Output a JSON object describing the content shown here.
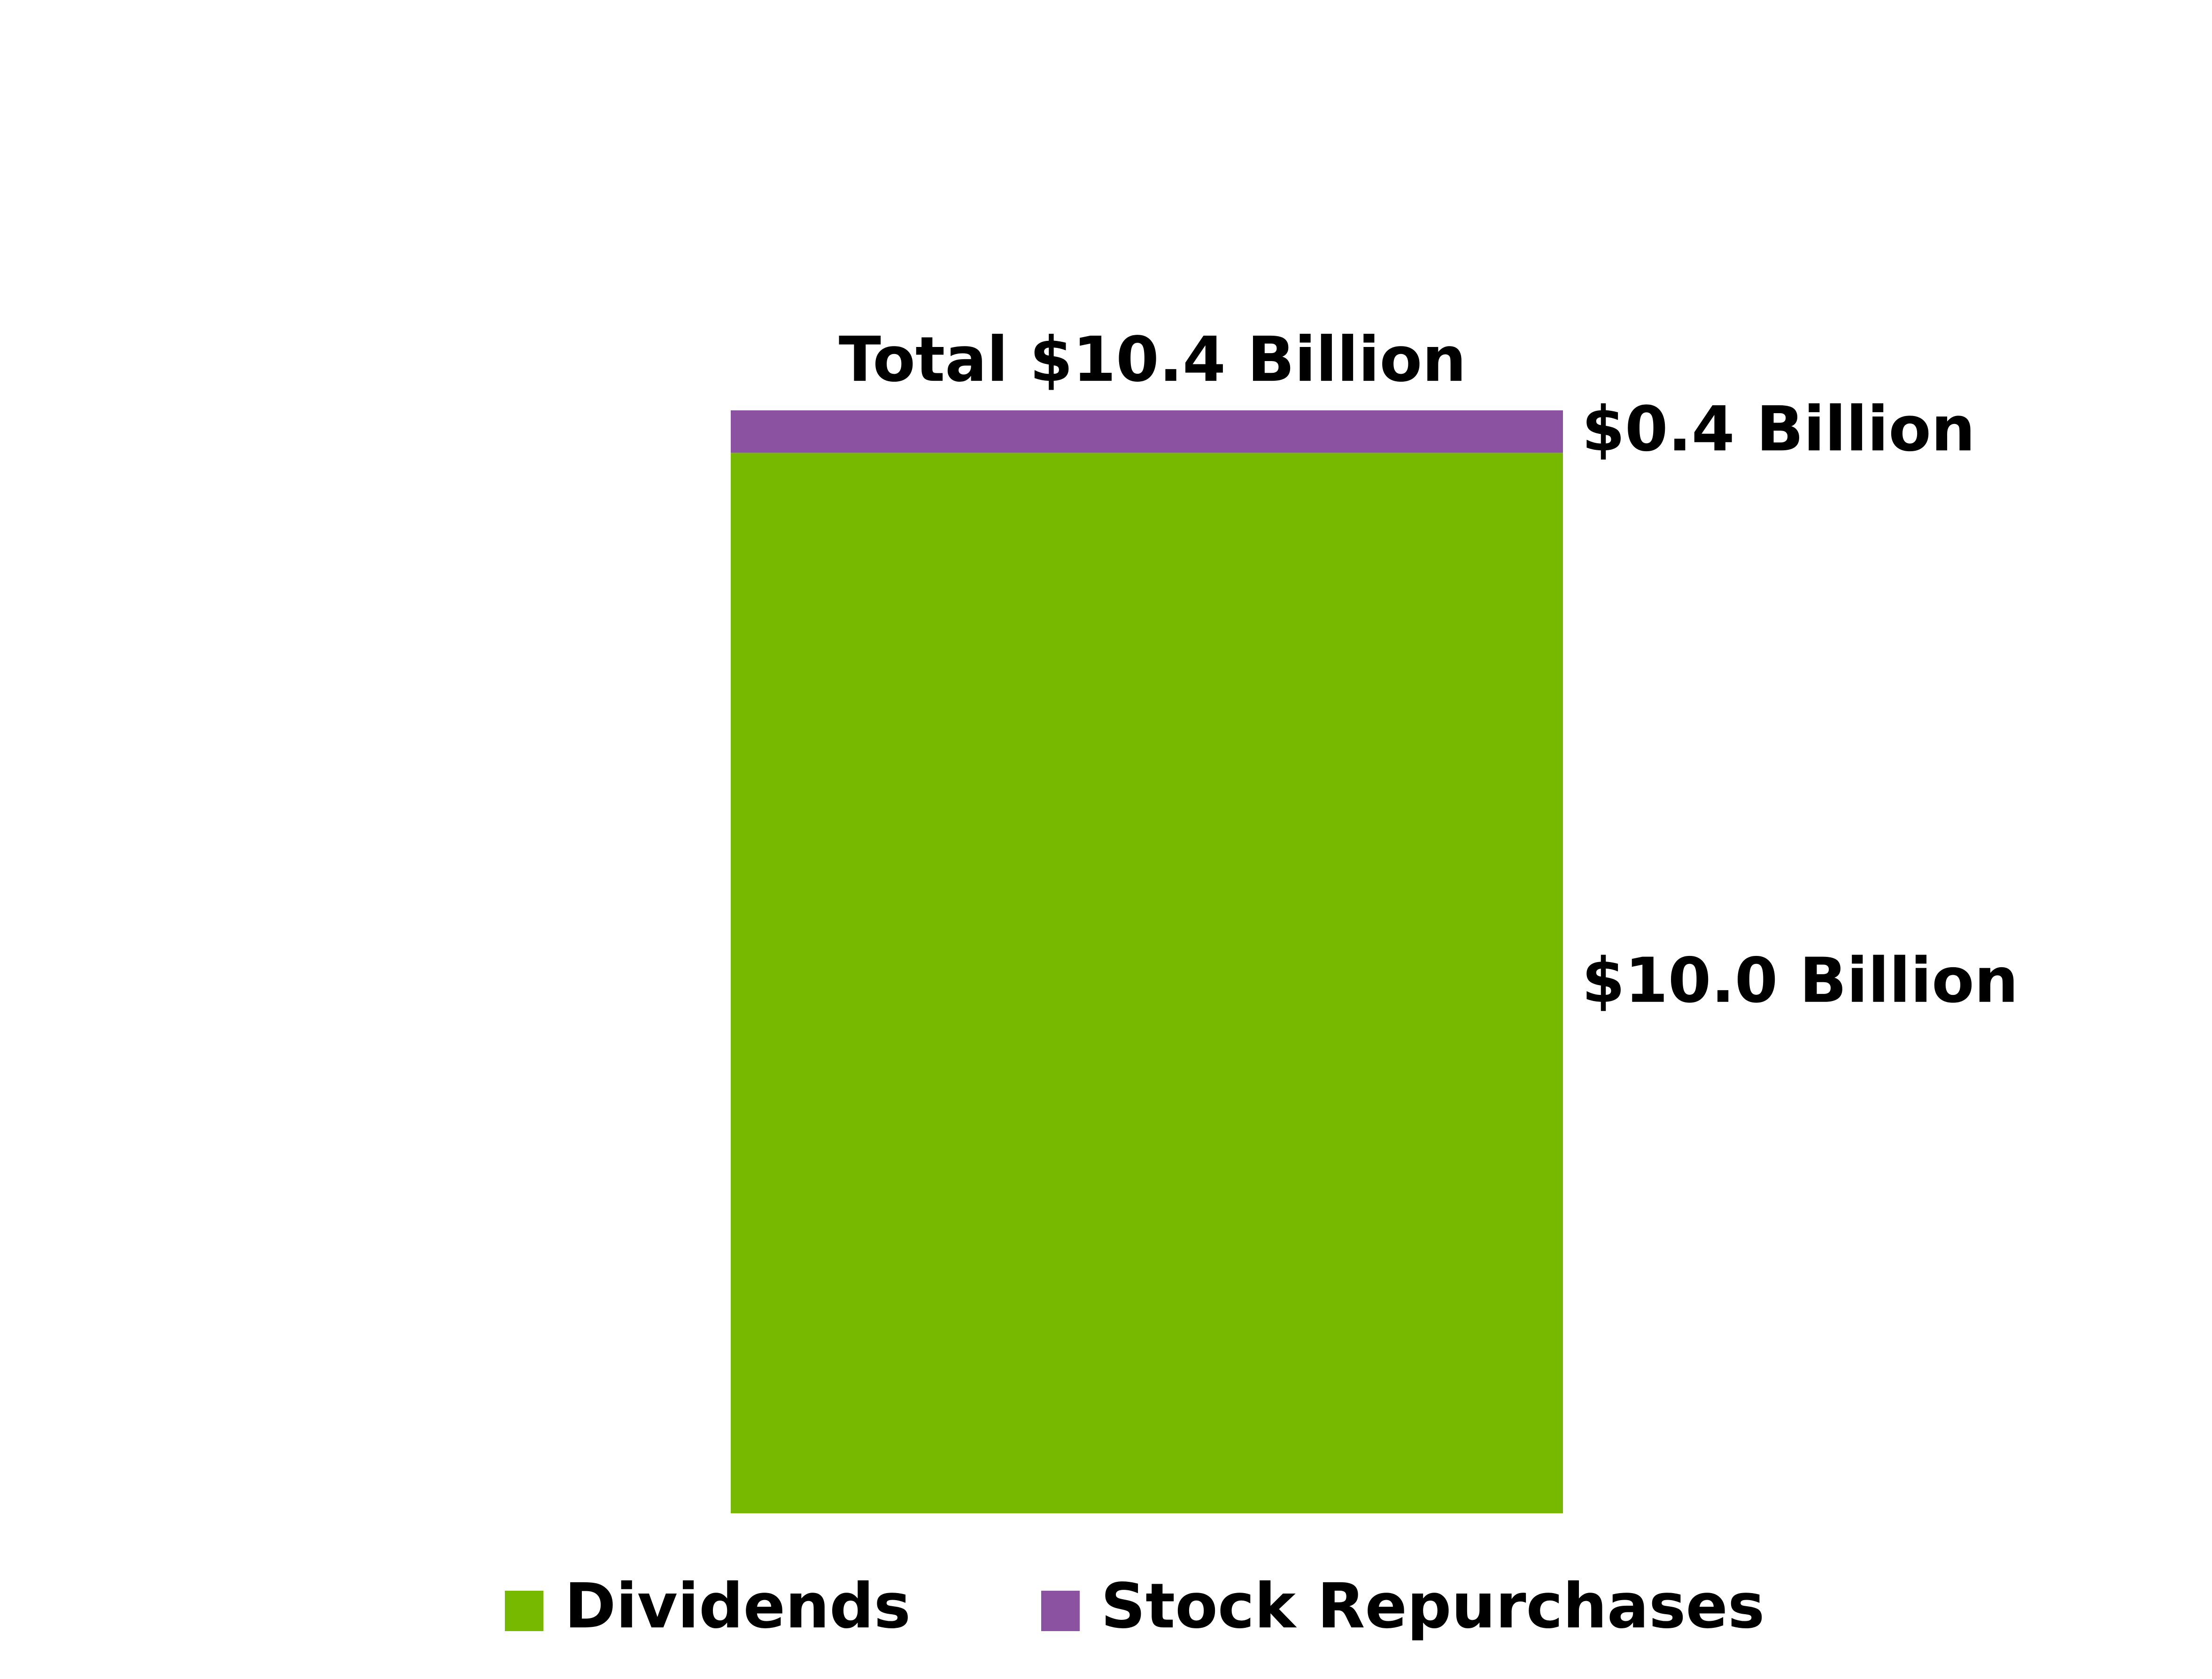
{
  "chart_data": {
    "type": "stacked_bar",
    "annotations": [
      "Total $10.4 Billion"
    ],
    "categories": [
      null
    ],
    "series": [
      {
        "name": "Dividends",
        "color": "#76b900",
        "values": [
          10.0
        ],
        "value_labels": [
          "$10.0 Billion"
        ]
      },
      {
        "name": "Stock Repurchases",
        "color": "#8b52a1",
        "values": [
          0.4
        ],
        "value_labels": [
          "$0.4 Billion"
        ]
      }
    ],
    "legend": "bottom"
  }
}
